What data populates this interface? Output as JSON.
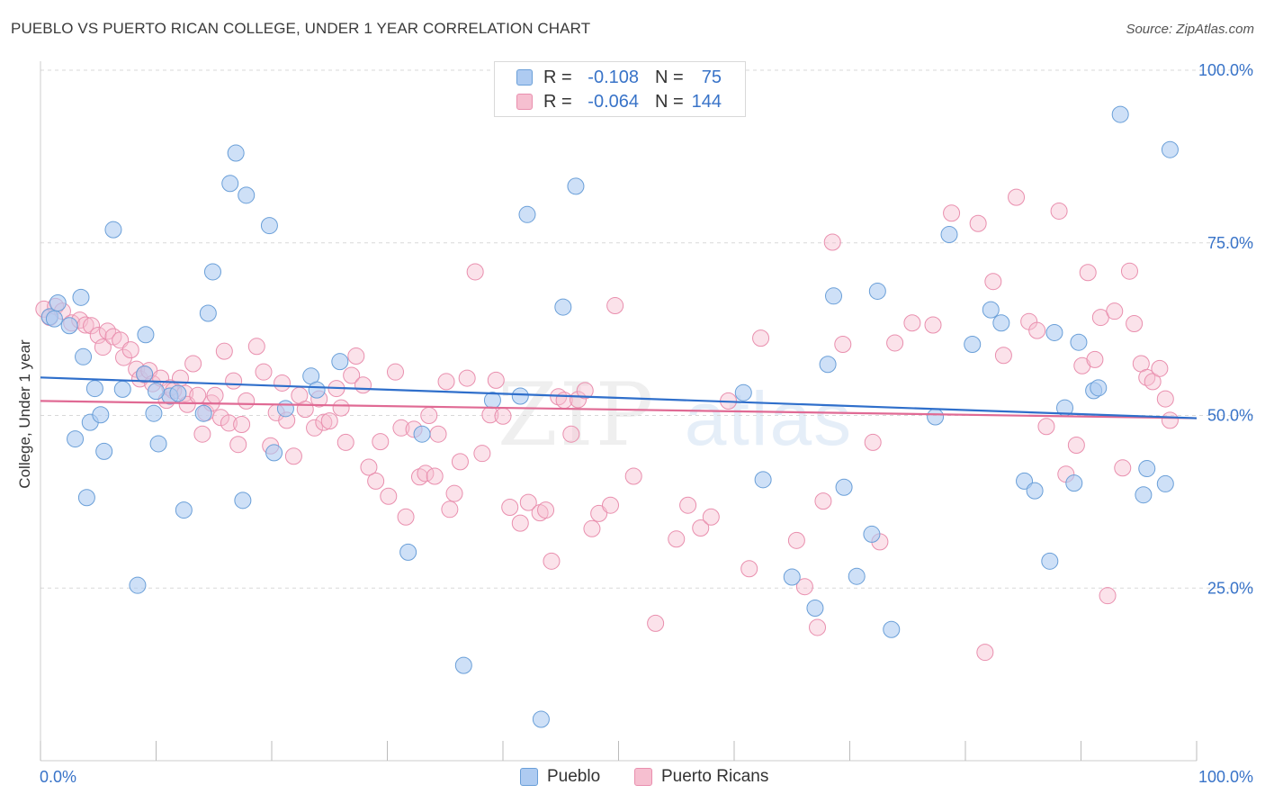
{
  "title": "PUEBLO VS PUERTO RICAN COLLEGE, UNDER 1 YEAR CORRELATION CHART",
  "source": "Source: ZipAtlas.com",
  "watermark": {
    "zip": "ZIP",
    "atlas": "atlas"
  },
  "legend": {
    "rows": [
      {
        "r_label": "R =",
        "r_value": "-0.108",
        "n_label": "N =",
        "n_value": "75"
      },
      {
        "r_label": "R =",
        "r_value": "-0.064",
        "n_label": "N =",
        "n_value": "144"
      }
    ]
  },
  "bottom_legend": {
    "pueblo": "Pueblo",
    "puerto_ricans": "Puerto Ricans"
  },
  "colors": {
    "pueblo_fill": "#aecbf1",
    "pueblo_stroke": "#6a9fd8",
    "pueblo_line": "#2f6fcb",
    "pr_fill": "#f6bfd0",
    "pr_stroke": "#e98fae",
    "pr_line": "#e06a94",
    "axis_text": "#3873c8",
    "grid": "#d8d8d8"
  },
  "chart_data": {
    "type": "scatter",
    "title": "PUEBLO VS PUERTO RICAN COLLEGE, UNDER 1 YEAR CORRELATION CHART",
    "xlabel": "",
    "ylabel": "College, Under 1 year",
    "xlim": [
      0,
      100
    ],
    "ylim": [
      0,
      100
    ],
    "x_tick_labels": [
      "0.0%",
      "100.0%"
    ],
    "y_tick_labels": [
      "25.0%",
      "50.0%",
      "75.0%",
      "100.0%"
    ],
    "y_ticks": [
      25,
      50,
      75,
      100
    ],
    "series": [
      {
        "name": "Pueblo",
        "r": -0.108,
        "n": 75,
        "trend": {
          "x": [
            0,
            100
          ],
          "y": [
            55.5,
            49.6
          ]
        },
        "points": [
          [
            0.8,
            64.3
          ],
          [
            1.5,
            66.3
          ],
          [
            2.5,
            63.0
          ],
          [
            3.0,
            46.6
          ],
          [
            3.5,
            67.1
          ],
          [
            3.7,
            58.5
          ],
          [
            4.0,
            38.1
          ],
          [
            4.3,
            49.0
          ],
          [
            4.7,
            53.9
          ],
          [
            5.2,
            50.1
          ],
          [
            5.5,
            44.8
          ],
          [
            6.3,
            76.9
          ],
          [
            7.1,
            53.8
          ],
          [
            8.4,
            25.4
          ],
          [
            9.0,
            56.0
          ],
          [
            9.1,
            61.7
          ],
          [
            9.8,
            50.3
          ],
          [
            10.2,
            45.9
          ],
          [
            11.2,
            52.8
          ],
          [
            11.9,
            53.2
          ],
          [
            12.4,
            36.3
          ],
          [
            14.1,
            50.3
          ],
          [
            14.5,
            64.8
          ],
          [
            14.9,
            70.8
          ],
          [
            16.4,
            83.6
          ],
          [
            16.9,
            88.0
          ],
          [
            17.5,
            37.7
          ],
          [
            17.8,
            81.9
          ],
          [
            19.8,
            77.5
          ],
          [
            20.2,
            44.6
          ],
          [
            21.2,
            51.0
          ],
          [
            23.4,
            55.7
          ],
          [
            25.9,
            57.8
          ],
          [
            23.9,
            53.7
          ],
          [
            31.8,
            30.2
          ],
          [
            33.0,
            47.3
          ],
          [
            36.6,
            13.8
          ],
          [
            39.1,
            52.2
          ],
          [
            41.5,
            52.8
          ],
          [
            42.1,
            79.1
          ],
          [
            43.3,
            6.0
          ],
          [
            45.2,
            65.7
          ],
          [
            46.3,
            83.2
          ],
          [
            60.8,
            53.3
          ],
          [
            62.5,
            40.7
          ],
          [
            65.0,
            26.6
          ],
          [
            67.0,
            22.1
          ],
          [
            68.1,
            57.4
          ],
          [
            68.6,
            67.3
          ],
          [
            69.5,
            39.6
          ],
          [
            70.6,
            26.7
          ],
          [
            71.9,
            32.8
          ],
          [
            72.4,
            68.0
          ],
          [
            73.6,
            19.0
          ],
          [
            77.4,
            49.8
          ],
          [
            78.6,
            76.2
          ],
          [
            80.6,
            60.3
          ],
          [
            82.2,
            65.3
          ],
          [
            83.1,
            63.4
          ],
          [
            85.1,
            40.5
          ],
          [
            86.0,
            39.1
          ],
          [
            87.3,
            28.9
          ],
          [
            87.7,
            62.0
          ],
          [
            88.6,
            51.1
          ],
          [
            89.4,
            40.2
          ],
          [
            89.8,
            60.6
          ],
          [
            91.1,
            53.6
          ],
          [
            91.5,
            54.0
          ],
          [
            93.4,
            93.6
          ],
          [
            95.4,
            38.5
          ],
          [
            95.7,
            42.3
          ],
          [
            97.3,
            40.1
          ],
          [
            97.7,
            88.5
          ],
          [
            1.2,
            64.0
          ],
          [
            10.0,
            53.5
          ]
        ]
      },
      {
        "name": "Puerto Ricans",
        "r": -0.064,
        "n": 144,
        "trend": {
          "x": [
            0,
            100
          ],
          "y": [
            52.1,
            49.6
          ]
        },
        "points": [
          [
            0.3,
            65.4
          ],
          [
            0.8,
            64.2
          ],
          [
            1.3,
            65.8
          ],
          [
            1.9,
            65.1
          ],
          [
            2.7,
            63.4
          ],
          [
            3.4,
            63.8
          ],
          [
            3.9,
            63.1
          ],
          [
            4.4,
            63.0
          ],
          [
            5.0,
            61.6
          ],
          [
            5.4,
            59.9
          ],
          [
            5.8,
            62.2
          ],
          [
            6.3,
            61.4
          ],
          [
            6.9,
            60.9
          ],
          [
            7.2,
            58.4
          ],
          [
            7.8,
            59.5
          ],
          [
            8.3,
            56.7
          ],
          [
            8.6,
            55.3
          ],
          [
            9.0,
            55.9
          ],
          [
            9.4,
            56.5
          ],
          [
            9.7,
            54.6
          ],
          [
            10.4,
            55.4
          ],
          [
            10.9,
            52.2
          ],
          [
            11.2,
            54.0
          ],
          [
            11.5,
            53.6
          ],
          [
            12.1,
            55.4
          ],
          [
            12.5,
            53.2
          ],
          [
            12.7,
            51.6
          ],
          [
            13.2,
            57.5
          ],
          [
            13.6,
            52.9
          ],
          [
            14.0,
            47.3
          ],
          [
            14.3,
            50.4
          ],
          [
            14.8,
            51.8
          ],
          [
            15.1,
            52.9
          ],
          [
            15.6,
            49.7
          ],
          [
            15.9,
            59.3
          ],
          [
            16.3,
            48.9
          ],
          [
            16.7,
            55.0
          ],
          [
            17.1,
            45.8
          ],
          [
            17.4,
            48.7
          ],
          [
            17.8,
            52.1
          ],
          [
            18.7,
            60.0
          ],
          [
            19.3,
            56.3
          ],
          [
            19.9,
            45.6
          ],
          [
            20.4,
            50.4
          ],
          [
            20.9,
            54.7
          ],
          [
            21.3,
            49.3
          ],
          [
            21.9,
            44.1
          ],
          [
            22.4,
            52.9
          ],
          [
            22.9,
            50.9
          ],
          [
            23.7,
            48.2
          ],
          [
            24.1,
            52.4
          ],
          [
            24.5,
            49.0
          ],
          [
            25.0,
            49.2
          ],
          [
            25.6,
            53.9
          ],
          [
            26.0,
            51.1
          ],
          [
            26.4,
            46.1
          ],
          [
            26.9,
            55.8
          ],
          [
            27.3,
            58.6
          ],
          [
            27.9,
            54.4
          ],
          [
            28.4,
            42.5
          ],
          [
            29.0,
            40.5
          ],
          [
            29.4,
            46.2
          ],
          [
            30.1,
            38.3
          ],
          [
            30.7,
            56.3
          ],
          [
            31.2,
            48.2
          ],
          [
            31.6,
            35.3
          ],
          [
            32.3,
            48.0
          ],
          [
            32.8,
            41.1
          ],
          [
            33.3,
            41.6
          ],
          [
            33.6,
            50.0
          ],
          [
            34.1,
            41.2
          ],
          [
            34.4,
            47.3
          ],
          [
            35.1,
            54.9
          ],
          [
            35.4,
            36.4
          ],
          [
            35.8,
            38.7
          ],
          [
            36.3,
            43.3
          ],
          [
            36.9,
            55.4
          ],
          [
            37.6,
            70.8
          ],
          [
            38.2,
            44.5
          ],
          [
            38.9,
            50.1
          ],
          [
            39.4,
            55.1
          ],
          [
            40.0,
            49.9
          ],
          [
            40.6,
            36.7
          ],
          [
            41.5,
            34.4
          ],
          [
            42.2,
            37.4
          ],
          [
            43.2,
            35.9
          ],
          [
            43.7,
            36.3
          ],
          [
            44.2,
            28.9
          ],
          [
            44.8,
            52.7
          ],
          [
            45.3,
            52.2
          ],
          [
            45.9,
            47.3
          ],
          [
            46.5,
            52.3
          ],
          [
            47.1,
            53.6
          ],
          [
            47.7,
            33.6
          ],
          [
            48.3,
            35.8
          ],
          [
            49.3,
            37.0
          ],
          [
            49.7,
            65.9
          ],
          [
            51.3,
            41.2
          ],
          [
            53.2,
            19.9
          ],
          [
            55.0,
            32.1
          ],
          [
            56.0,
            37.0
          ],
          [
            57.1,
            33.7
          ],
          [
            58.0,
            35.3
          ],
          [
            59.5,
            52.1
          ],
          [
            61.3,
            27.8
          ],
          [
            62.3,
            61.2
          ],
          [
            65.4,
            31.9
          ],
          [
            66.1,
            25.2
          ],
          [
            67.2,
            19.3
          ],
          [
            67.7,
            37.6
          ],
          [
            68.5,
            75.1
          ],
          [
            69.4,
            60.3
          ],
          [
            72.0,
            46.1
          ],
          [
            72.6,
            31.7
          ],
          [
            73.9,
            60.5
          ],
          [
            75.4,
            63.4
          ],
          [
            77.2,
            63.1
          ],
          [
            78.8,
            79.3
          ],
          [
            81.1,
            77.8
          ],
          [
            81.7,
            15.7
          ],
          [
            82.4,
            69.4
          ],
          [
            83.3,
            58.7
          ],
          [
            84.4,
            81.6
          ],
          [
            85.5,
            63.6
          ],
          [
            86.2,
            62.3
          ],
          [
            87.0,
            48.4
          ],
          [
            88.1,
            79.6
          ],
          [
            88.7,
            41.5
          ],
          [
            89.6,
            45.7
          ],
          [
            90.1,
            57.2
          ],
          [
            90.6,
            70.7
          ],
          [
            91.2,
            58.1
          ],
          [
            91.7,
            64.2
          ],
          [
            92.3,
            23.9
          ],
          [
            92.9,
            65.1
          ],
          [
            93.6,
            42.4
          ],
          [
            94.2,
            70.9
          ],
          [
            94.6,
            63.3
          ],
          [
            95.2,
            57.5
          ],
          [
            95.7,
            55.5
          ],
          [
            96.2,
            54.9
          ],
          [
            96.8,
            56.8
          ],
          [
            97.3,
            52.4
          ],
          [
            97.7,
            49.3
          ]
        ]
      }
    ]
  }
}
